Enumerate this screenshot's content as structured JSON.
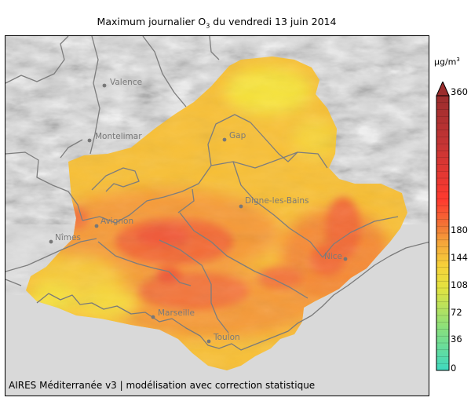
{
  "title": {
    "prefix": "Maximum journalier O",
    "subscript": "3",
    "suffix": " du vendredi 13 juin 2014"
  },
  "credit": "AIRES Méditerranée v3 | modélisation avec correction statistique",
  "colorbar": {
    "unit_base": "μg/m",
    "unit_exp": "3",
    "ticks": [
      "0",
      "36",
      "72",
      "108",
      "144",
      "180",
      "360"
    ],
    "colors": {
      "low": "#3fd9c0",
      "mid": "#f6e23a",
      "high": "#ff3a2f",
      "top": "#9b2d2d"
    }
  },
  "cities": [
    {
      "name": "Valence",
      "key": "valence"
    },
    {
      "name": "Montelimar",
      "key": "montelimar"
    },
    {
      "name": "Gap",
      "key": "gap"
    },
    {
      "name": "Digne-les-Bains",
      "key": "digne"
    },
    {
      "name": "Avignon",
      "key": "avignon"
    },
    {
      "name": "Nîmes",
      "key": "nimes"
    },
    {
      "name": "Nice",
      "key": "nice"
    },
    {
      "name": "Marseille",
      "key": "marseille"
    },
    {
      "name": "Toulon",
      "key": "toulon"
    }
  ]
}
